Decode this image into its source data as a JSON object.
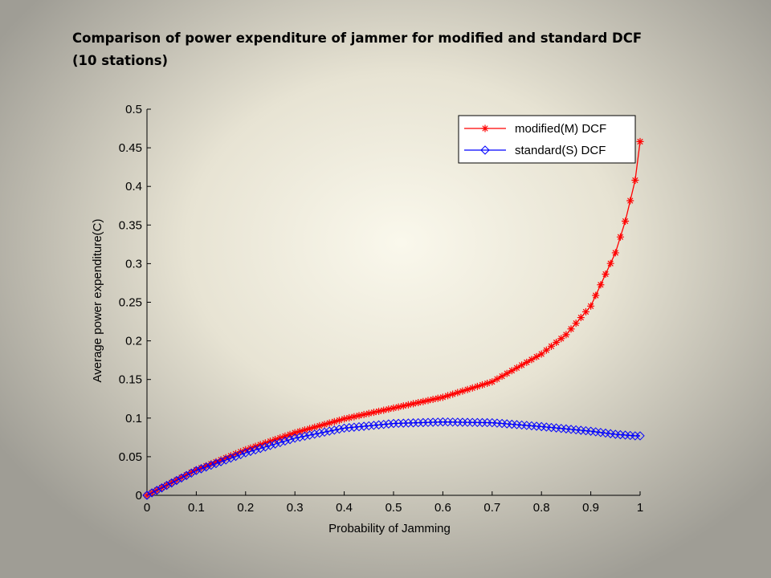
{
  "slide": {
    "title_line1": "Comparison of power expenditure of jammer for modified and standard DCF",
    "title_line2": "(10 stations)"
  },
  "chart_data": {
    "type": "line",
    "title": "",
    "xlabel": "Probability of Jamming",
    "ylabel": "Average power expenditure(C)",
    "xlim": [
      0,
      1
    ],
    "ylim": [
      0,
      0.5
    ],
    "x_ticks": [
      "0",
      "0.1",
      "0.2",
      "0.3",
      "0.4",
      "0.5",
      "0.6",
      "0.7",
      "0.8",
      "0.9",
      "1"
    ],
    "y_ticks": [
      "0",
      "0.05",
      "0.1",
      "0.15",
      "0.2",
      "0.25",
      "0.3",
      "0.35",
      "0.4",
      "0.45",
      "0.5"
    ],
    "grid": false,
    "legend_position": "top-right",
    "x": [
      0,
      0.1,
      0.2,
      0.3,
      0.4,
      0.5,
      0.6,
      0.7,
      0.8,
      0.85,
      0.9,
      0.95,
      0.97,
      0.99,
      1.0
    ],
    "series": [
      {
        "name": "modified(M) DCF",
        "color": "#ff0000",
        "marker": "asterisk",
        "values": [
          0,
          0.033,
          0.059,
          0.081,
          0.099,
          0.113,
          0.127,
          0.147,
          0.183,
          0.208,
          0.245,
          0.314,
          0.355,
          0.408,
          0.458
        ]
      },
      {
        "name": "standard(S) DCF",
        "color": "#0000ff",
        "marker": "diamond",
        "values": [
          0,
          0.032,
          0.055,
          0.074,
          0.087,
          0.093,
          0.095,
          0.094,
          0.089,
          0.086,
          0.083,
          0.079,
          0.078,
          0.077,
          0.077
        ]
      }
    ]
  }
}
